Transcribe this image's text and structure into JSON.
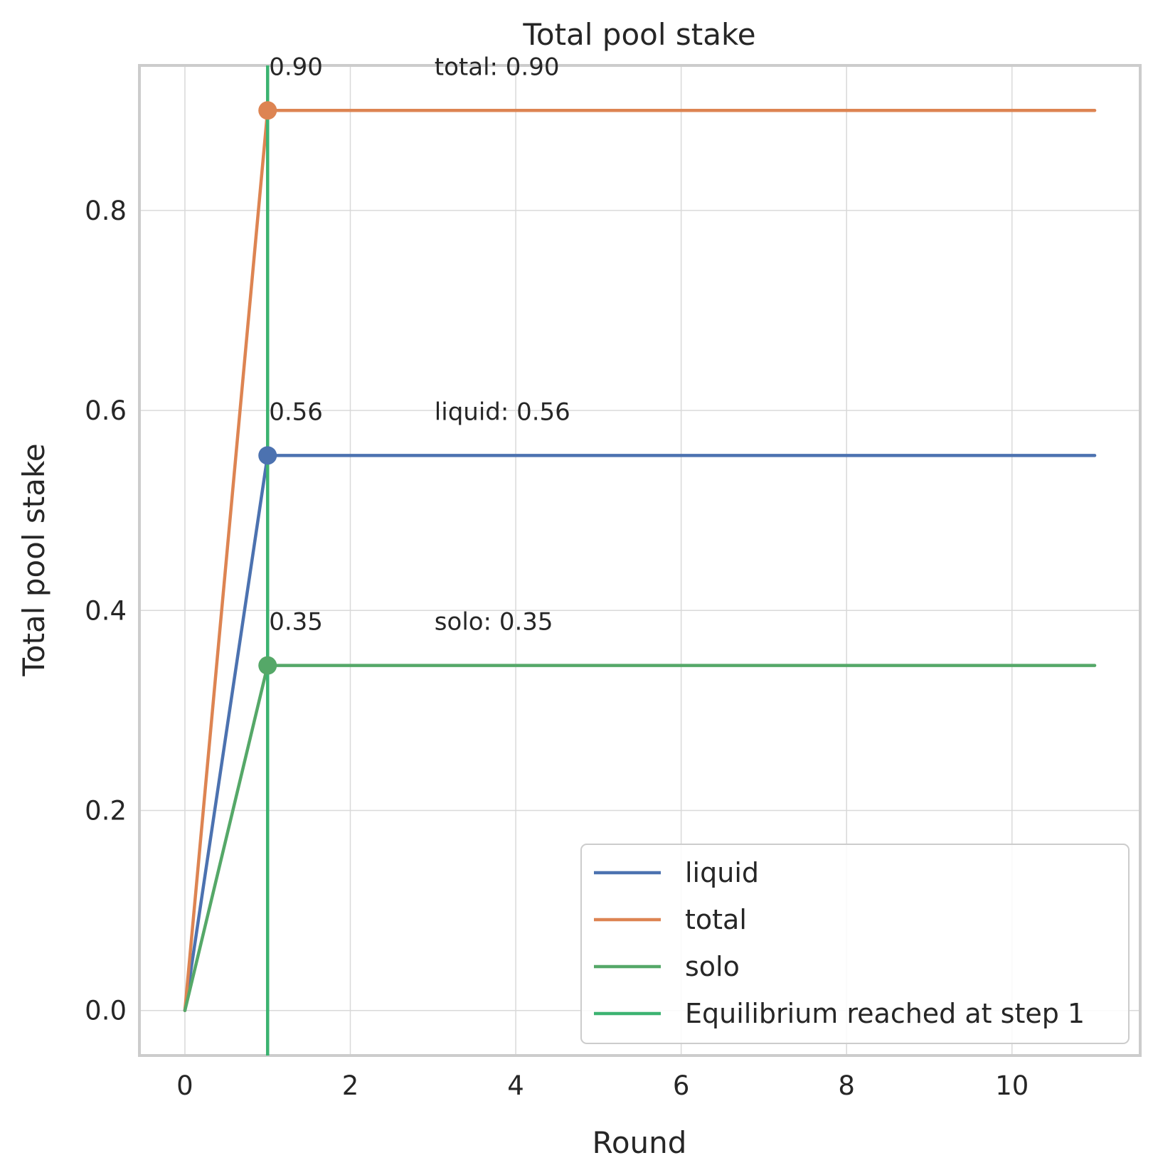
{
  "chart_data": {
    "type": "line",
    "title": "Total pool stake",
    "xlabel": "Round",
    "ylabel": "Total pool stake",
    "xlim": [
      -0.55,
      11.55
    ],
    "ylim": [
      -0.045,
      0.945
    ],
    "xticks": [
      0,
      2,
      4,
      6,
      8,
      10
    ],
    "xtick_labels": [
      "0",
      "2",
      "4",
      "6",
      "8",
      "10"
    ],
    "yticks": [
      0.0,
      0.2,
      0.4,
      0.6,
      0.8
    ],
    "ytick_labels": [
      "0.0",
      "0.2",
      "0.4",
      "0.6",
      "0.8"
    ],
    "grid": true,
    "legend_position": "lower-right",
    "x": [
      0,
      1,
      2,
      3,
      4,
      5,
      6,
      7,
      8,
      9,
      10,
      11
    ],
    "series": [
      {
        "name": "liquid",
        "color": "#4c72b0",
        "values": [
          0.0,
          0.555,
          0.555,
          0.555,
          0.555,
          0.555,
          0.555,
          0.555,
          0.555,
          0.555,
          0.555,
          0.555
        ]
      },
      {
        "name": "total",
        "color": "#dd8452",
        "values": [
          0.0,
          0.9,
          0.9,
          0.9,
          0.9,
          0.9,
          0.9,
          0.9,
          0.9,
          0.9,
          0.9,
          0.9
        ]
      },
      {
        "name": "solo",
        "color": "#55a868",
        "values": [
          0.0,
          0.345,
          0.345,
          0.345,
          0.345,
          0.345,
          0.345,
          0.345,
          0.345,
          0.345,
          0.345,
          0.345
        ]
      }
    ],
    "markers": [
      {
        "series": "liquid",
        "x": 1,
        "y": 0.555,
        "color": "#4c72b0"
      },
      {
        "series": "total",
        "x": 1,
        "y": 0.9,
        "color": "#dd8452"
      },
      {
        "series": "solo",
        "x": 1,
        "y": 0.345,
        "color": "#55a868"
      }
    ],
    "vertical_line": {
      "name": "Equilibrium reached at step 1",
      "x": 1,
      "color": "#3cb371"
    },
    "annotations": [
      {
        "text": "0.90",
        "x": 1,
        "y": 0.9
      },
      {
        "text": "total: 0.90",
        "x": 3,
        "y": 0.9
      },
      {
        "text": "0.56",
        "x": 1,
        "y": 0.555
      },
      {
        "text": "liquid: 0.56",
        "x": 3,
        "y": 0.555
      },
      {
        "text": "0.35",
        "x": 1,
        "y": 0.345
      },
      {
        "text": "solo: 0.35",
        "x": 3,
        "y": 0.345
      }
    ],
    "legend": [
      "liquid",
      "total",
      "solo",
      "Equilibrium reached at step 1"
    ]
  }
}
